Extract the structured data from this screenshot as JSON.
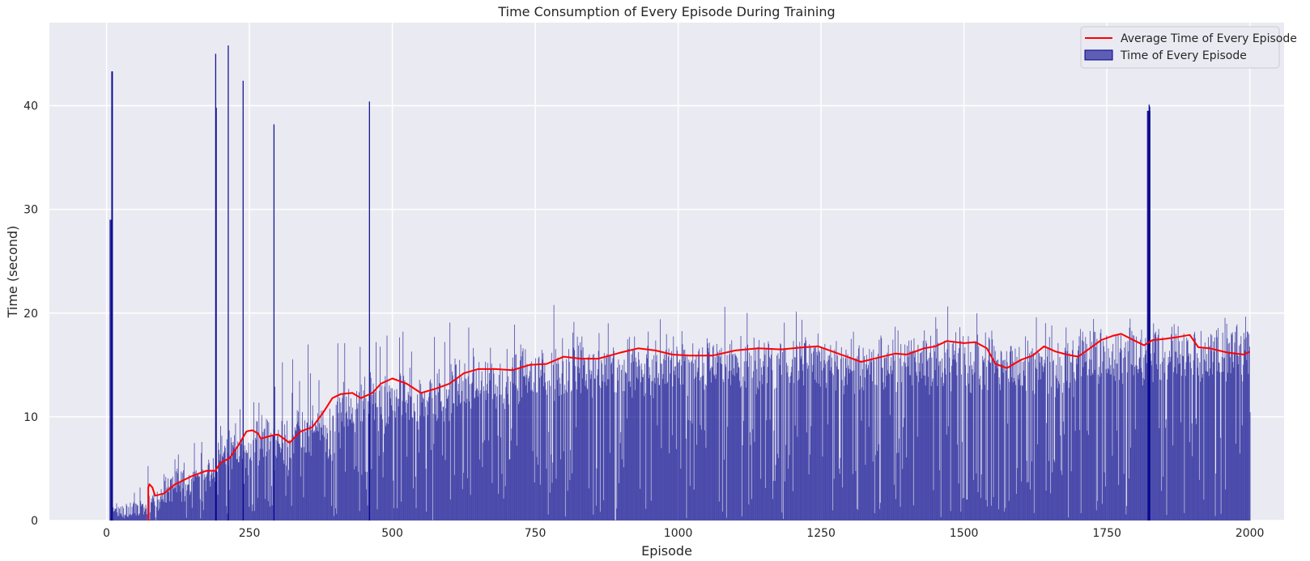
{
  "chart_data": {
    "type": "bar",
    "title": "Time Consumption of Every Episode During Training",
    "xlabel": "Episode",
    "ylabel": "Time (second)",
    "xlim": [
      -100,
      2060
    ],
    "ylim": [
      0,
      48
    ],
    "xticks": [
      0,
      250,
      500,
      750,
      1000,
      1250,
      1500,
      1750,
      2000
    ],
    "yticks": [
      0,
      10,
      20,
      30,
      40
    ],
    "grid": true,
    "legend_position": "top-right",
    "colors": {
      "background": "#eaeaf2",
      "grid": "#ffffff",
      "bar": "#00008b",
      "line": "#ff0000"
    },
    "series": [
      {
        "name": "Average Time of Every Episode",
        "kind": "line",
        "x": [
          73,
          73,
          75,
          80,
          85,
          100,
          120,
          150,
          175,
          190,
          200,
          215,
          230,
          245,
          255,
          265,
          270,
          290,
          300,
          320,
          340,
          360,
          380,
          395,
          410,
          430,
          445,
          465,
          480,
          500,
          525,
          550,
          575,
          600,
          625,
          650,
          680,
          710,
          740,
          770,
          800,
          830,
          860,
          900,
          930,
          960,
          990,
          1020,
          1060,
          1100,
          1140,
          1180,
          1220,
          1245,
          1270,
          1300,
          1320,
          1350,
          1380,
          1400,
          1430,
          1450,
          1470,
          1500,
          1520,
          1540,
          1555,
          1575,
          1600,
          1620,
          1640,
          1660,
          1680,
          1700,
          1720,
          1740,
          1760,
          1775,
          1800,
          1815,
          1830,
          1850,
          1875,
          1895,
          1910,
          1930,
          1960,
          1990,
          2000
        ],
        "values": [
          0,
          3.2,
          3.5,
          3.2,
          2.4,
          2.6,
          3.5,
          4.3,
          4.8,
          4.8,
          5.6,
          6.0,
          7.2,
          8.6,
          8.7,
          8.4,
          7.9,
          8.2,
          8.3,
          7.5,
          8.6,
          9.0,
          10.5,
          11.8,
          12.2,
          12.3,
          11.8,
          12.3,
          13.2,
          13.7,
          13.2,
          12.3,
          12.7,
          13.2,
          14.2,
          14.6,
          14.6,
          14.5,
          15.0,
          15.1,
          15.8,
          15.6,
          15.6,
          16.2,
          16.6,
          16.4,
          16.0,
          15.9,
          15.9,
          16.4,
          16.6,
          16.5,
          16.7,
          16.8,
          16.3,
          15.7,
          15.3,
          15.7,
          16.1,
          16.0,
          16.6,
          16.8,
          17.3,
          17.1,
          17.2,
          16.6,
          15.1,
          14.7,
          15.5,
          15.9,
          16.8,
          16.3,
          16.0,
          15.8,
          16.6,
          17.4,
          17.8,
          18.0,
          17.3,
          16.9,
          17.4,
          17.5,
          17.7,
          17.9,
          16.7,
          16.6,
          16.2,
          16.0,
          16.3
        ]
      },
      {
        "name": "Time of Every Episode",
        "kind": "bar",
        "bin_width": 1,
        "segments": [
          {
            "x_range": [
              5,
              8
            ],
            "base": 29.0
          },
          {
            "x_range": [
              8,
              11
            ],
            "base": 43.3
          },
          {
            "x_range": [
              11,
              70
            ],
            "base": 1.2,
            "amp": 3.5
          },
          {
            "x_range": [
              70,
              100
            ],
            "base": 2.5,
            "amp": 3.0
          },
          {
            "x_range": [
              100,
              150
            ],
            "base": 4.0,
            "amp": 4.5
          },
          {
            "x_range": [
              150,
              190
            ],
            "base": 5.0,
            "amp": 4.0
          },
          {
            "x_range": [
              190,
              260
            ],
            "base": 7.5,
            "amp": 7.0
          },
          {
            "x_range": [
              260,
              330
            ],
            "base": 8.5,
            "amp": 8.0
          },
          {
            "x_range": [
              330,
              400
            ],
            "base": 9.5,
            "amp": 9.0
          },
          {
            "x_range": [
              400,
              500
            ],
            "base": 12.5,
            "amp": 8.0
          },
          {
            "x_range": [
              500,
              600
            ],
            "base": 13.0,
            "amp": 7.5
          },
          {
            "x_range": [
              600,
              700
            ],
            "base": 14.5,
            "amp": 6.0
          },
          {
            "x_range": [
              700,
              800
            ],
            "base": 15.5,
            "amp": 5.0
          },
          {
            "x_range": [
              800,
              1000
            ],
            "base": 16.5,
            "amp": 4.5
          },
          {
            "x_range": [
              1000,
              1250
            ],
            "base": 16.8,
            "amp": 3.5
          },
          {
            "x_range": [
              1250,
              1350
            ],
            "base": 16.3,
            "amp": 2.5
          },
          {
            "x_range": [
              1350,
              1550
            ],
            "base": 17.0,
            "amp": 3.5
          },
          {
            "x_range": [
              1550,
              1700
            ],
            "base": 16.5,
            "amp": 3.5
          },
          {
            "x_range": [
              1700,
              1820
            ],
            "base": 17.5,
            "amp": 3.0
          },
          {
            "x_range": [
              1820,
              1826
            ],
            "base": 39.5
          },
          {
            "x_range": [
              1826,
              2001
            ],
            "base": 17.8,
            "amp": 2.5
          }
        ],
        "spikes": [
          {
            "x": 7,
            "value": 29.0
          },
          {
            "x": 9,
            "value": 43.3
          },
          {
            "x": 190,
            "value": 45.0
          },
          {
            "x": 191,
            "value": 39.8
          },
          {
            "x": 212,
            "value": 45.8
          },
          {
            "x": 238,
            "value": 42.4
          },
          {
            "x": 292,
            "value": 38.2
          },
          {
            "x": 459,
            "value": 40.4
          },
          {
            "x": 1821,
            "value": 39.5
          },
          {
            "x": 1823,
            "value": 40.1
          },
          {
            "x": 1824,
            "value": 39.9
          }
        ]
      }
    ]
  }
}
